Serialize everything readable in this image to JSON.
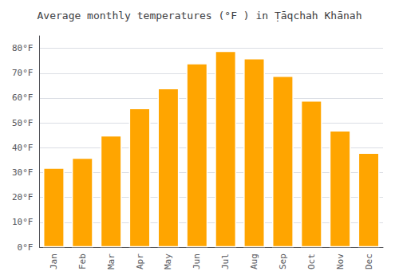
{
  "chart_data": {
    "type": "bar",
    "title": "Average monthly temperatures (°F ) in Ṭāqchah Khānah",
    "categories": [
      "Jan",
      "Feb",
      "Mar",
      "Apr",
      "May",
      "Jun",
      "Jul",
      "Aug",
      "Sep",
      "Oct",
      "Nov",
      "Dec"
    ],
    "values": [
      32,
      36,
      45,
      56,
      64,
      74,
      79,
      76,
      69,
      59,
      47,
      38
    ],
    "color": "#FFA500",
    "ylim": [
      0,
      85
    ],
    "yticks": [
      {
        "value": 0,
        "label": "0°F"
      },
      {
        "value": 10,
        "label": "10°F"
      },
      {
        "value": 20,
        "label": "20°F"
      },
      {
        "value": 30,
        "label": "30°F"
      },
      {
        "value": 40,
        "label": "40°F"
      },
      {
        "value": 50,
        "label": "50°F"
      },
      {
        "value": 60,
        "label": "60°F"
      },
      {
        "value": 70,
        "label": "70°F"
      },
      {
        "value": 80,
        "label": "80°F"
      }
    ],
    "grid": true
  }
}
